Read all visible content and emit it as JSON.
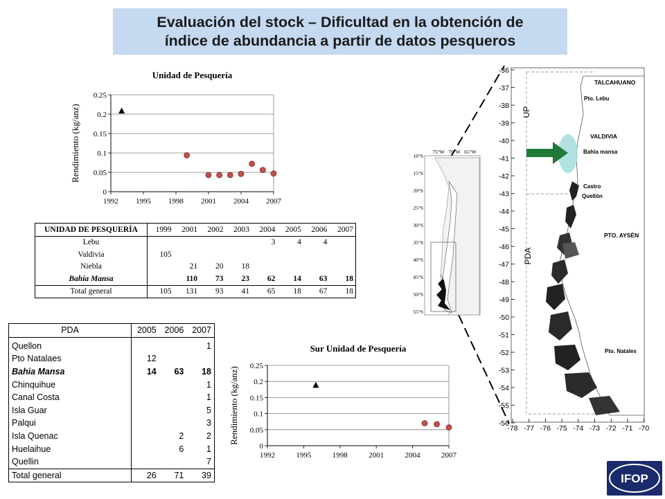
{
  "title": {
    "line1": "Evaluación del stock – Dificultad en la obtención de",
    "line2": "índice de abundancia a partir de datos pesqueros"
  },
  "chart_data": [
    {
      "type": "scatter",
      "title": "Unidad de Pesquería",
      "xlabel": "",
      "ylabel": "Rendimiento (kg/anz)",
      "xlim": [
        1992,
        2007
      ],
      "ylim": [
        0,
        0.25
      ],
      "xticks": [
        "1992",
        "1995",
        "1998",
        "2001",
        "2004",
        "2007"
      ],
      "yticks": [
        "0",
        "0.05",
        "0.1",
        "0.15",
        "0.2",
        "0.25"
      ],
      "series": [
        {
          "marker": "triangle",
          "color": "#000000",
          "x": [
            1993
          ],
          "y": [
            0.208
          ]
        },
        {
          "marker": "circle",
          "color": "#c0504d",
          "x": [
            1999,
            2001,
            2002,
            2003,
            2004,
            2005,
            2006,
            2007
          ],
          "y": [
            0.094,
            0.043,
            0.043,
            0.043,
            0.046,
            0.072,
            0.056,
            0.047
          ]
        }
      ],
      "grid": true
    },
    {
      "type": "scatter",
      "title": "Sur Unidad de Pesquería",
      "xlabel": "",
      "ylabel": "Rendimiento (kg/anz)",
      "xlim": [
        1992,
        2007
      ],
      "ylim": [
        0,
        0.25
      ],
      "xticks": [
        "1992",
        "1995",
        "1998",
        "2001",
        "2004",
        "2007"
      ],
      "yticks": [
        "0",
        "0.05",
        "0.1",
        "0.15",
        "0.2",
        "0.25"
      ],
      "series": [
        {
          "marker": "triangle",
          "color": "#000000",
          "x": [
            1996
          ],
          "y": [
            0.188
          ]
        },
        {
          "marker": "circle",
          "color": "#c0504d",
          "x": [
            2005,
            2006,
            2007
          ],
          "y": [
            0.07,
            0.067,
            0.057
          ]
        }
      ],
      "grid": true
    }
  ],
  "up_table": {
    "header": [
      "UNIDAD DE PESQUERÍA",
      "1999",
      "2001",
      "2002",
      "2003",
      "2004",
      "2005",
      "2006",
      "2007"
    ],
    "rows": [
      {
        "label": "Lebu",
        "values": [
          "",
          "",
          "",
          "",
          "3",
          "4",
          "4",
          ""
        ]
      },
      {
        "label": "Valdivia",
        "values": [
          "105",
          "",
          "",
          "",
          "",
          "",
          "",
          ""
        ]
      },
      {
        "label": "Niebla",
        "values": [
          "",
          "21",
          "20",
          "18",
          "",
          "",
          "",
          ""
        ]
      },
      {
        "label": "Bahía Mansa",
        "values": [
          "",
          "110",
          "73",
          "23",
          "62",
          "14",
          "63",
          "18"
        ],
        "bold": true
      },
      {
        "label": "Total general",
        "values": [
          "105",
          "131",
          "93",
          "41",
          "65",
          "18",
          "67",
          "18"
        ]
      }
    ]
  },
  "pda_table": {
    "header": [
      "PDA",
      "2005",
      "2006",
      "2007"
    ],
    "rows": [
      {
        "label": "Quellon",
        "values": [
          "",
          "",
          "1"
        ]
      },
      {
        "label": "Pto Natalaes",
        "values": [
          "12",
          "",
          ""
        ]
      },
      {
        "label": "Bahia Mansa",
        "values": [
          "14",
          "63",
          "18"
        ],
        "bold": true
      },
      {
        "label": "Chinquihue",
        "values": [
          "",
          "",
          "1"
        ]
      },
      {
        "label": "Canal Costa",
        "values": [
          "",
          "",
          "1"
        ]
      },
      {
        "label": "Isla Guar",
        "values": [
          "",
          "",
          "5"
        ]
      },
      {
        "label": "Palqui",
        "values": [
          "",
          "",
          "3"
        ]
      },
      {
        "label": "Isla Quenac",
        "values": [
          "",
          "2",
          "2"
        ]
      },
      {
        "label": "Huelaihue",
        "values": [
          "",
          "6",
          "1"
        ]
      },
      {
        "label": "Quellin",
        "values": [
          "",
          "",
          "7"
        ]
      }
    ],
    "total": {
      "label": "Total general",
      "values": [
        "26",
        "71",
        "39"
      ]
    }
  },
  "inset_map": {
    "lon_labels": [
      "75°W",
      "70°W",
      "65°W"
    ],
    "lat_labels": [
      "10°S",
      "15°S",
      "20°S",
      "25°S",
      "30°S",
      "35°S",
      "40°S",
      "45°S",
      "50°S",
      "55°S"
    ]
  },
  "main_map": {
    "lat_ticks": [
      "-36",
      "-37",
      "-38",
      "-39",
      "-40",
      "-41",
      "-42",
      "-43",
      "-44",
      "-45",
      "-46",
      "-47",
      "-48",
      "-49",
      "-50",
      "-51",
      "-52",
      "-53",
      "-54",
      "-55",
      "-56"
    ],
    "lon_ticks": [
      "-78",
      "-77",
      "-76",
      "-75",
      "-74",
      "-73",
      "-72",
      "-71",
      "-70"
    ],
    "places": [
      "TALCAHUANO",
      "Pto. Lebu",
      "VALDIVIA",
      "Bahía mansa",
      "Castro",
      "Quellón",
      "PTO. AYSÉN",
      "Pto. Natales"
    ],
    "zone_up": "UP",
    "zone_pda": "PDA",
    "arrow_color": "#1f7a3a",
    "highlight_color": "#a9dede"
  },
  "logo": {
    "text": "IFOP",
    "color": "#1b2a6b"
  }
}
